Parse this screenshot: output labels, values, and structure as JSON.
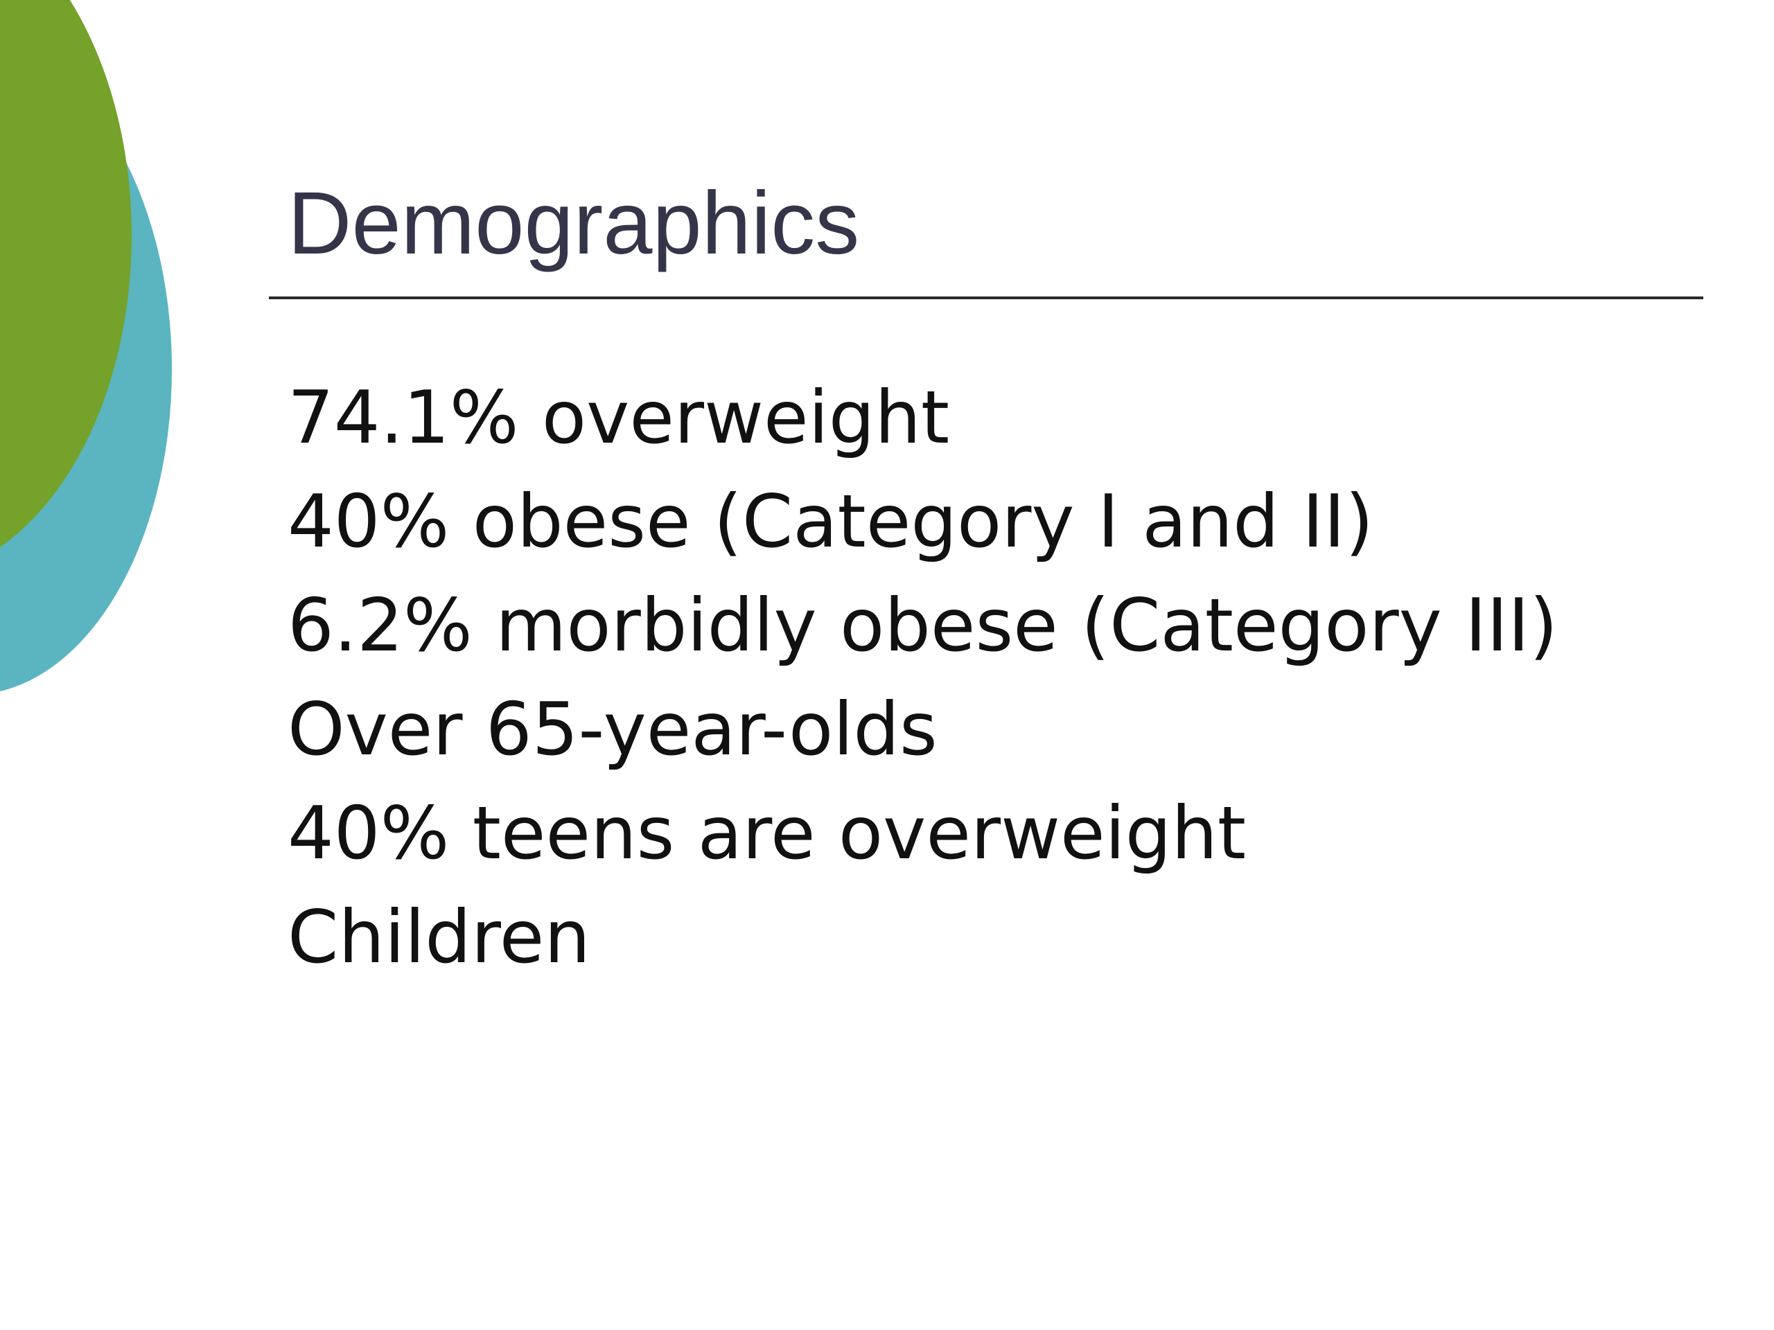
{
  "slide": {
    "title": "Demographics",
    "bullets": [
      "74.1% overweight",
      "40% obese (Category I and II)",
      "6.2% morbidly obese (Category III)",
      "Over 65-year-olds",
      "40% teens are overweight",
      "Children"
    ]
  },
  "colors": {
    "title": "#35354a",
    "body_text": "#111111",
    "deco_green": "#74a22b",
    "deco_teal": "#5ab5c1",
    "rule": "#2a2a2a"
  }
}
